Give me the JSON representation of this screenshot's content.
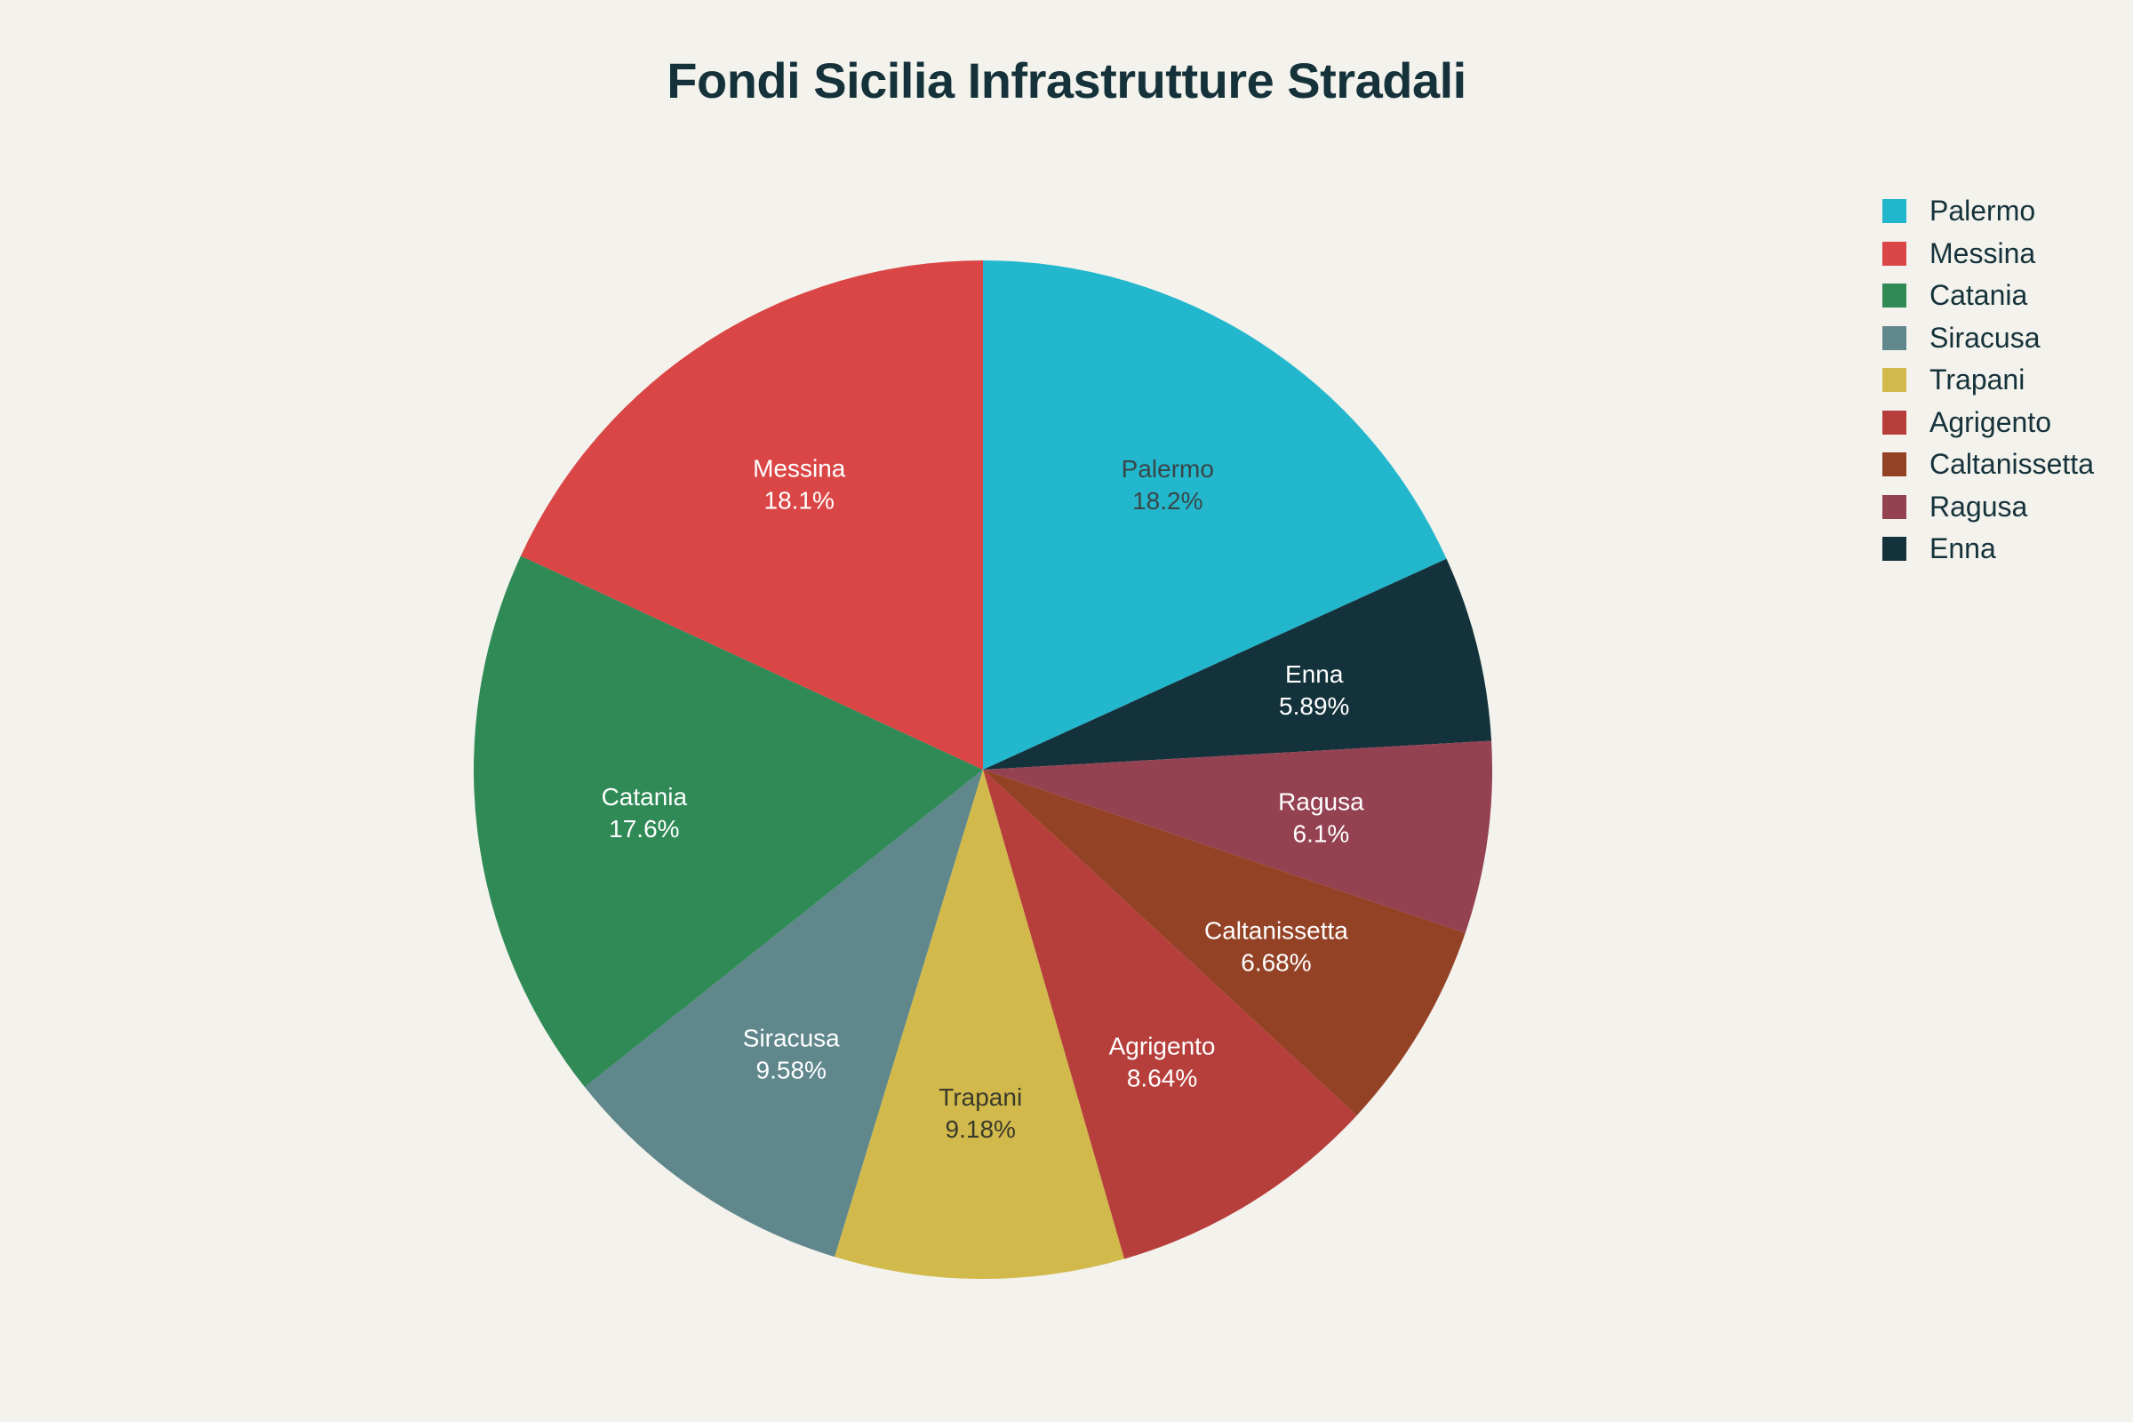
{
  "chart_data": {
    "type": "pie",
    "title": "Fondi Sicilia Infrastrutture Stradali",
    "legend_position": "top-right",
    "direction": "clockwise",
    "start": "top",
    "slices": [
      {
        "label": "Palermo",
        "percent": 18.2,
        "percent_label": "18.2%",
        "color": "#22b7cd",
        "text_color": "#3a4648"
      },
      {
        "label": "Enna",
        "percent": 5.89,
        "percent_label": "5.89%",
        "color": "#14323b",
        "text_color": "#ffffff"
      },
      {
        "label": "Ragusa",
        "percent": 6.1,
        "percent_label": "6.1%",
        "color": "#944152",
        "text_color": "#ffffff"
      },
      {
        "label": "Caltanissetta",
        "percent": 6.68,
        "percent_label": "6.68%",
        "color": "#944225",
        "text_color": "#ffffff"
      },
      {
        "label": "Agrigento",
        "percent": 8.64,
        "percent_label": "8.64%",
        "color": "#b63f3c",
        "text_color": "#ffffff"
      },
      {
        "label": "Trapani",
        "percent": 9.18,
        "percent_label": "9.18%",
        "color": "#d2b94c",
        "text_color": "#3a3a2a"
      },
      {
        "label": "Siracusa",
        "percent": 9.58,
        "percent_label": "9.58%",
        "color": "#5f878c",
        "text_color": "#ffffff"
      },
      {
        "label": "Catania",
        "percent": 17.6,
        "percent_label": "17.6%",
        "color": "#2f8a56",
        "text_color": "#ffffff"
      },
      {
        "label": "Messina",
        "percent": 18.1,
        "percent_label": "18.1%",
        "color": "#da4646",
        "text_color": "#ffffff"
      }
    ],
    "legend": [
      {
        "label": "Palermo",
        "color": "#22b7cd"
      },
      {
        "label": "Messina",
        "color": "#da4646"
      },
      {
        "label": "Catania",
        "color": "#2f8a56"
      },
      {
        "label": "Siracusa",
        "color": "#5f878c"
      },
      {
        "label": "Trapani",
        "color": "#d2b94c"
      },
      {
        "label": "Agrigento",
        "color": "#b63f3c"
      },
      {
        "label": "Caltanissetta",
        "color": "#944225"
      },
      {
        "label": "Ragusa",
        "color": "#944152"
      },
      {
        "label": "Enna",
        "color": "#14323b"
      }
    ]
  }
}
